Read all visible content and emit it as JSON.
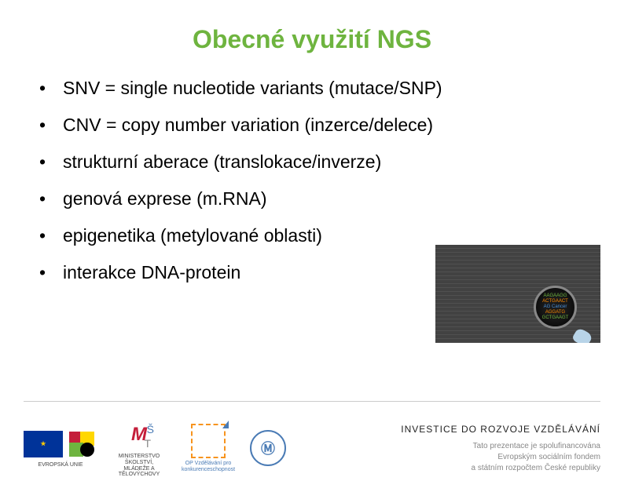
{
  "title": "Obecné využití NGS",
  "title_color": "#6eb43f",
  "title_fontsize": 32,
  "bullets": [
    "SNV = single nucleotide variants (mutace/SNP)",
    "CNV = copy number variation (inzerce/delece)",
    "strukturní aberace (translokace/inverze)",
    "genová exprese (m.RNA)",
    "epigenetika (metylované oblasti)",
    "interakce DNA-protein"
  ],
  "bullet_fontsize": 23,
  "bullet_color": "#000000",
  "dna_image": {
    "background": "#3a3a3a",
    "magnifier_lines": [
      "AAGAAGG",
      "ACTGAACT",
      "AG Cancer",
      "AGGATG",
      "GCTGAAGT"
    ],
    "colors": {
      "green": "#6eb43f",
      "orange": "#ff8c00",
      "blue": "#4a90d9"
    }
  },
  "footer": {
    "eu_caption": "EVROPSKÁ UNIE",
    "msmt_caption": "MINISTERSTVO ŠKOLSTVÍ, MLÁDEŽE A TĚLOVÝCHOVY",
    "opvk_caption": "OP Vzdělávání pro konkurenceschopnost",
    "right_title": "INVESTICE DO ROZVOJE VZDĚLÁVÁNÍ",
    "right_line1": "Tato prezentace je spolufinancována",
    "right_line2": "Evropským sociálním fondem",
    "right_line3": "a státním rozpočtem České republiky"
  },
  "colors": {
    "green": "#6eb43f",
    "eu_blue": "#003399",
    "eu_yellow": "#ffcc00",
    "red": "#c41e3a",
    "blue": "#4a7bb5",
    "orange": "#f7941e",
    "divider": "#cccccc"
  }
}
